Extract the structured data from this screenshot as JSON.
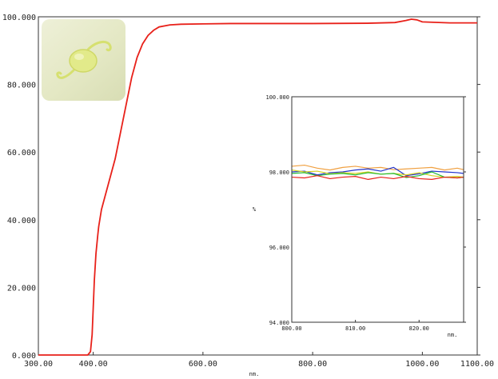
{
  "chart_data": [
    {
      "type": "line",
      "title": "",
      "xlabel": "nm.",
      "ylabel": "",
      "xlim": [
        300,
        1100
      ],
      "ylim": [
        0,
        100
      ],
      "xticks": [
        300,
        400,
        600,
        800,
        1000,
        1100
      ],
      "xtick_labels": [
        "300.00",
        "400.00",
        "600.00",
        "800.00",
        "1000.00",
        "1100.00"
      ],
      "yticks": [
        0,
        20,
        40,
        60,
        80,
        100
      ],
      "ytick_labels": [
        "0.000",
        "20.000",
        "40.000",
        "60.000",
        "80.000",
        "100.000"
      ],
      "grid": false,
      "series": [
        {
          "color": "#e8211a",
          "x": [
            300,
            390,
            395,
            398,
            400,
            402,
            405,
            408,
            410,
            415,
            420,
            430,
            440,
            450,
            460,
            470,
            480,
            490,
            500,
            510,
            520,
            540,
            560,
            600,
            650,
            700,
            800,
            900,
            950,
            970,
            980,
            990,
            1000,
            1050,
            1100
          ],
          "y": [
            0,
            0,
            1,
            6,
            14,
            22,
            30,
            35,
            38,
            43,
            46,
            52,
            58,
            66,
            74,
            82,
            88,
            92,
            94.5,
            96,
            97,
            97.6,
            97.8,
            97.9,
            98,
            98,
            98,
            98.1,
            98.3,
            98.9,
            99.3,
            99.1,
            98.5,
            98.2,
            98.2
          ]
        }
      ]
    },
    {
      "type": "line",
      "title": "",
      "xlabel": "nm.",
      "ylabel": "%",
      "xlim": [
        800,
        827
      ],
      "ylim": [
        94,
        100
      ],
      "xticks": [
        800,
        810,
        820
      ],
      "xtick_labels": [
        "800.00",
        "810.00",
        "820.00"
      ],
      "yticks": [
        94,
        96,
        98,
        100
      ],
      "ytick_labels": [
        "94.000",
        "96.000",
        "98.000",
        "100.000"
      ],
      "grid": false,
      "series": [
        {
          "color": "#f0a040",
          "x": [
            800,
            802,
            804,
            806,
            808,
            810,
            812,
            814,
            816,
            818,
            820,
            822,
            824,
            826,
            827
          ],
          "y": [
            98.15,
            98.18,
            98.1,
            98.05,
            98.12,
            98.15,
            98.1,
            98.12,
            98.06,
            98.08,
            98.1,
            98.12,
            98.05,
            98.1,
            98.06
          ]
        },
        {
          "color": "#2233cc",
          "x": [
            800,
            802,
            804,
            806,
            808,
            810,
            812,
            814,
            816,
            818,
            820,
            822,
            824,
            826,
            827
          ],
          "y": [
            98.0,
            98.02,
            97.92,
            97.98,
            98.0,
            98.05,
            98.08,
            98.02,
            98.12,
            97.9,
            97.95,
            98.02,
            98.0,
            97.98,
            97.96
          ]
        },
        {
          "color": "#d8d020",
          "x": [
            800,
            802,
            804,
            806,
            808,
            810,
            812,
            814,
            816,
            818,
            820,
            822,
            824,
            826,
            827
          ],
          "y": [
            98.05,
            98.0,
            98.02,
            97.95,
            97.98,
            97.96,
            98.0,
            97.94,
            97.96,
            97.92,
            97.98,
            97.9,
            97.86,
            97.88,
            97.86
          ]
        },
        {
          "color": "#22bb33",
          "x": [
            800,
            802,
            804,
            806,
            808,
            810,
            812,
            814,
            816,
            818,
            820,
            822,
            824,
            826,
            827
          ],
          "y": [
            97.96,
            97.98,
            97.9,
            97.94,
            97.96,
            97.92,
            97.98,
            97.94,
            97.96,
            97.85,
            97.9,
            98.0,
            97.86,
            97.84,
            97.86
          ]
        },
        {
          "color": "#e8211a",
          "x": [
            800,
            802,
            804,
            806,
            808,
            810,
            812,
            814,
            816,
            818,
            820,
            822,
            824,
            826,
            827
          ],
          "y": [
            97.86,
            97.84,
            97.9,
            97.82,
            97.86,
            97.88,
            97.8,
            97.86,
            97.82,
            97.88,
            97.82,
            97.8,
            97.86,
            97.84,
            97.86
          ]
        }
      ]
    }
  ]
}
